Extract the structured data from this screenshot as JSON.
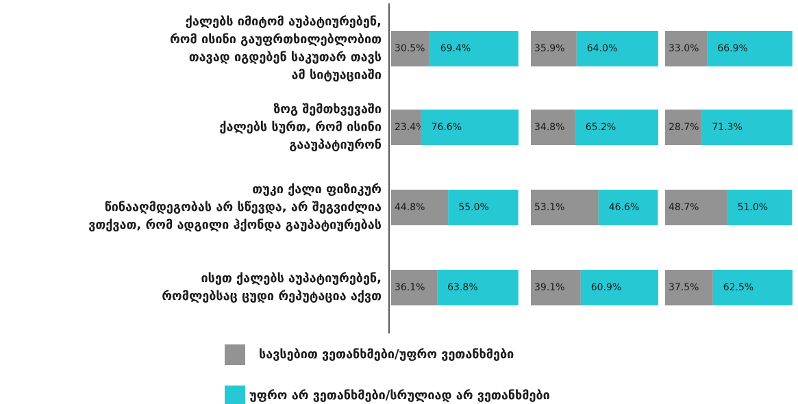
{
  "chart_data": {
    "type": "bar",
    "orientation": "horizontal",
    "stacked": true,
    "xlim": [
      0,
      100
    ],
    "categories": [
      [
        "ქალებს იმიტომ აუპატიურებენ,",
        "რომ ისინი გაუფრთხილებლობით",
        "თავად იგდებენ საკუთარ თავს",
        "ამ სიტუაციაში"
      ],
      [
        "ზოგ შემთხვევაში",
        "ქალებს სურთ, რომ ისინი",
        "გააუპატიურონ"
      ],
      [
        "თუკი ქალი ფიზიკურ",
        "წინააღმდეგობას არ სწევდა, არ შეგვიძლია",
        "ვთქვათ, რომ ადგილი   ჰქონდა გაუპატიურებას"
      ],
      [
        "ისეთ ქალებს აუპატიურებენ,",
        "რომლებსაც ცუდი რეპუტაცია აქვთ"
      ]
    ],
    "series": [
      {
        "name": "სავსებით ვეთანხმები/უფრო ვეთანხმები",
        "color": "#939393",
        "values": [
          [
            30.5,
            23.4,
            44.8,
            36.1
          ],
          [
            35.9,
            34.8,
            53.1,
            39.1
          ],
          [
            33.0,
            28.7,
            48.7,
            37.5
          ]
        ],
        "value_labels": [
          [
            "30.5%",
            "23.4%",
            "44.8%",
            "36.1%"
          ],
          [
            "35.9%",
            "34.8%",
            "53.1%",
            "39.1%"
          ],
          [
            "33.0%",
            "28.7%",
            "48.7%",
            "37.5%"
          ]
        ]
      },
      {
        "name": "უფრო არ ვეთანხმები/სრულიად არ ვეთანხმები",
        "color": "#26c9d3",
        "values": [
          [
            69.4,
            76.6,
            55.0,
            63.8
          ],
          [
            64.0,
            65.2,
            46.6,
            60.9
          ],
          [
            66.9,
            71.3,
            51.0,
            62.5
          ]
        ],
        "value_labels": [
          [
            "69.4%",
            "76.6%",
            "55.0%",
            "63.8%"
          ],
          [
            "64.0%",
            "65.2%",
            "46.6%",
            "60.9%"
          ],
          [
            "66.9%",
            "71.3%",
            "51.0%",
            "62.5%"
          ]
        ]
      }
    ]
  }
}
